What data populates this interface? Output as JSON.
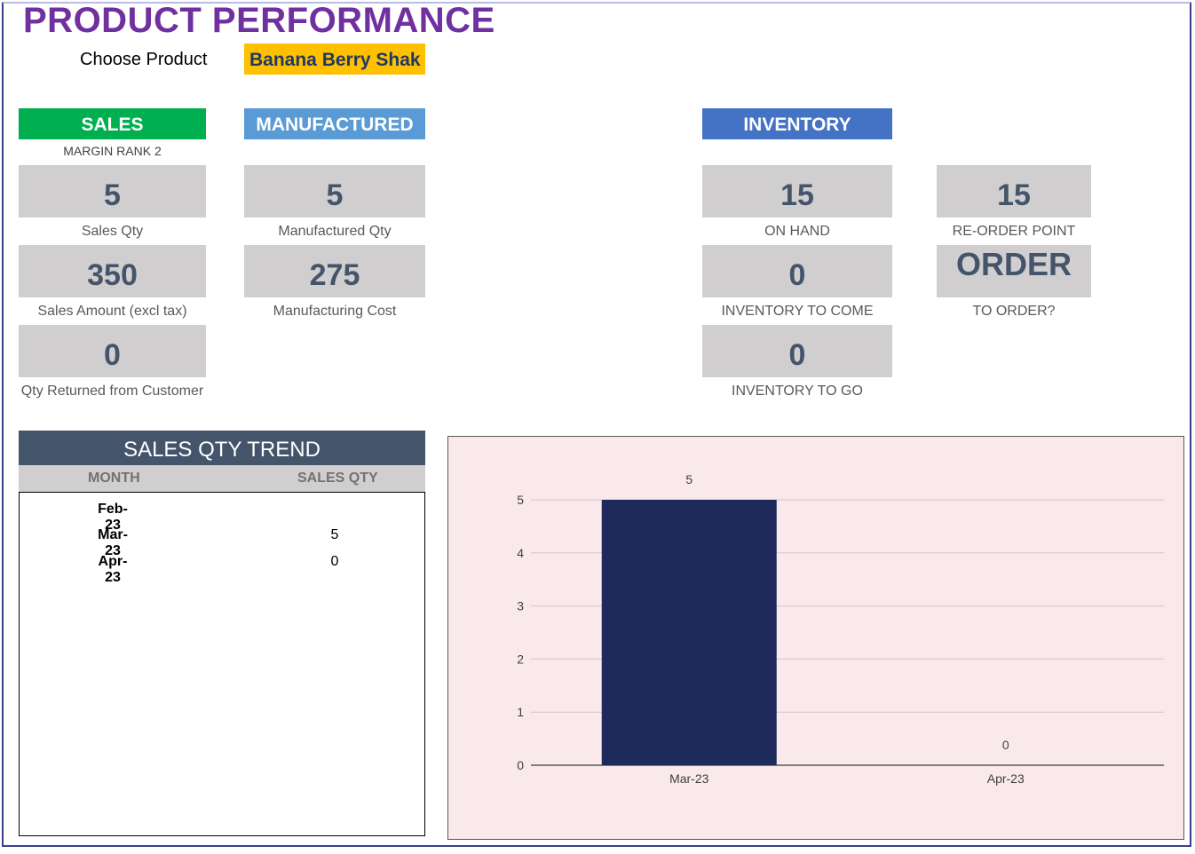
{
  "page": {
    "title": "PRODUCT PERFORMANCE"
  },
  "product": {
    "label": "Choose Product",
    "selected": "Banana Berry Shak"
  },
  "sales": {
    "header": "SALES",
    "rank": "MARGIN RANK 2",
    "qty": "5",
    "qty_label": "Sales Qty",
    "amount": "350",
    "amount_label": "Sales Amount (excl tax)",
    "returned": "0",
    "returned_label": "Qty Returned from Customer"
  },
  "manufactured": {
    "header": "MANUFACTURED",
    "qty": "5",
    "qty_label": "Manufactured Qty",
    "cost": "275",
    "cost_label": "Manufacturing Cost"
  },
  "inventory": {
    "header": "INVENTORY",
    "on_hand": "15",
    "on_hand_label": "ON HAND",
    "to_come": "0",
    "to_come_label": "INVENTORY TO COME",
    "to_go": "0",
    "to_go_label": "INVENTORY TO GO",
    "reorder_point": "15",
    "reorder_point_label": "RE-ORDER POINT",
    "to_order": "ORDER",
    "to_order_label": "TO ORDER?"
  },
  "trend": {
    "header": "SALES QTY TREND",
    "col_month": "MONTH",
    "col_qty": "SALES QTY",
    "rows": [
      {
        "month": "Feb-23",
        "qty": ""
      },
      {
        "month": "Mar-23",
        "qty": "5"
      },
      {
        "month": "Apr-23",
        "qty": "0"
      }
    ]
  },
  "colors": {
    "title": "#7030a0",
    "product_bg": "#ffc000",
    "sales_hdr": "#00b050",
    "manufactured_hdr": "#5b9bd5",
    "inventory_hdr": "#4472c4",
    "trend_hdr": "#44546a",
    "bar": "#1f2a5c",
    "chart_bg": "#f9e9ea"
  },
  "chart_data": {
    "type": "bar",
    "categories": [
      "Mar-23",
      "Apr-23"
    ],
    "values": [
      5,
      0
    ],
    "ylim": [
      0,
      5
    ],
    "yticks": [
      0,
      1,
      2,
      3,
      4,
      5
    ],
    "data_labels": true,
    "grid": true,
    "legend": "none"
  }
}
